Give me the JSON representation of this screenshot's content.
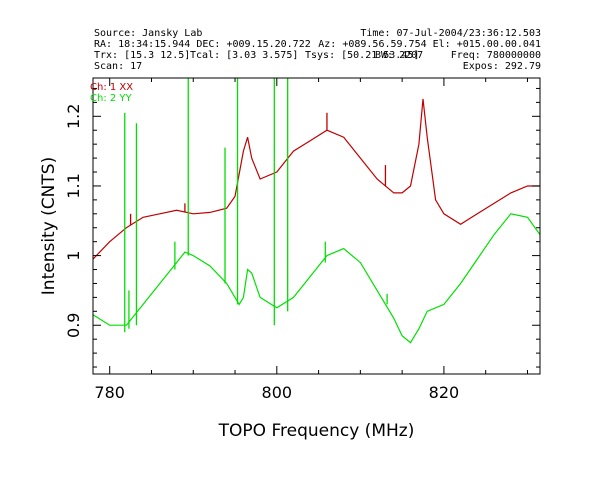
{
  "header": {
    "source": "Source: Jansky Lab",
    "time": "Time: 07-Jul-2004/23:36:12.503",
    "ra_dec": "RA: 18:34:15.944 DEC: +009.15.20.722",
    "az_el": "Az: +089.56.59.754 El: +015.00.00.041",
    "trx": "Trx: [15.3 12.5]",
    "tcal": "Tcal: [3.03 3.575]",
    "tsys": "Tsys: [50.21 53.45]",
    "bw": "BW: 2207",
    "freq": "Freq: 780000000",
    "scan": "Scan: 17",
    "expos": "Expos: 292.79"
  },
  "colors": {
    "ch1": "#c00000",
    "ch2": "#00e000",
    "axis": "#000000",
    "background": "#ffffff"
  },
  "chart_data": {
    "type": "line",
    "xlabel": "TOPO Frequency (MHz)",
    "ylabel": "Intensity (CNTS)",
    "xlim": [
      778,
      831.5
    ],
    "ylim": [
      0.83,
      1.255
    ],
    "xticks": [
      780,
      800,
      820
    ],
    "xtick_labels": [
      "780",
      "800",
      "820"
    ],
    "yticks": [
      0.9,
      1.0,
      1.1,
      1.2
    ],
    "ytick_labels": [
      "0.9",
      "1",
      "1.1",
      "1.2"
    ],
    "legend": [
      "Ch: 1 XX",
      "Ch: 2 YY"
    ],
    "legend_position": "top-left",
    "series": [
      {
        "name": "Ch: 1 XX",
        "color": "#c00000",
        "x": [
          778,
          780,
          782,
          784,
          786,
          788,
          790,
          792,
          794,
          795,
          796,
          796.5,
          797,
          798,
          800,
          802,
          804,
          806,
          808,
          810,
          812,
          814,
          815,
          816,
          817,
          817.5,
          818,
          819,
          820,
          822,
          824,
          826,
          828,
          830,
          831.5
        ],
        "y": [
          0.995,
          1.02,
          1.04,
          1.055,
          1.06,
          1.065,
          1.06,
          1.062,
          1.068,
          1.085,
          1.15,
          1.17,
          1.14,
          1.11,
          1.12,
          1.15,
          1.165,
          1.18,
          1.17,
          1.14,
          1.11,
          1.09,
          1.09,
          1.1,
          1.16,
          1.225,
          1.17,
          1.08,
          1.06,
          1.045,
          1.06,
          1.075,
          1.09,
          1.1,
          1.1
        ],
        "spikes": [
          {
            "x": 782.5,
            "y": 1.06
          },
          {
            "x": 789,
            "y": 1.075
          },
          {
            "x": 806,
            "y": 1.205
          },
          {
            "x": 813,
            "y": 1.13
          }
        ]
      },
      {
        "name": "Ch: 2 YY",
        "color": "#00e000",
        "x": [
          778,
          780,
          782,
          784,
          786,
          788,
          789,
          790,
          792,
          794,
          795,
          795.5,
          796,
          796.5,
          797,
          798,
          800,
          802,
          804,
          806,
          808,
          810,
          812,
          814,
          815,
          816,
          817,
          818,
          820,
          822,
          824,
          826,
          828,
          830,
          831.5
        ],
        "y": [
          0.915,
          0.9,
          0.9,
          0.93,
          0.96,
          0.99,
          1.005,
          1.0,
          0.985,
          0.96,
          0.94,
          0.93,
          0.94,
          0.98,
          0.975,
          0.94,
          0.925,
          0.94,
          0.97,
          1.0,
          1.01,
          0.99,
          0.95,
          0.91,
          0.885,
          0.875,
          0.895,
          0.92,
          0.93,
          0.96,
          0.995,
          1.03,
          1.06,
          1.055,
          1.03
        ],
        "spikes": [
          {
            "x": 781.8,
            "y1": 0.89,
            "y2": 1.205
          },
          {
            "x": 782.3,
            "y1": 0.895,
            "y2": 0.95
          },
          {
            "x": 783.2,
            "y1": 0.9,
            "y2": 1.19
          },
          {
            "x": 787.8,
            "y1": 0.98,
            "y2": 1.02
          },
          {
            "x": 789.4,
            "y1": 1.0,
            "y2": 1.255
          },
          {
            "x": 793.8,
            "y1": 0.96,
            "y2": 1.155
          },
          {
            "x": 795.3,
            "y1": 0.93,
            "y2": 1.255
          },
          {
            "x": 799.7,
            "y1": 0.9,
            "y2": 1.255
          },
          {
            "x": 801.3,
            "y1": 0.92,
            "y2": 1.255
          },
          {
            "x": 805.8,
            "y1": 0.99,
            "y2": 1.02
          },
          {
            "x": 813.2,
            "y1": 0.93,
            "y2": 0.945
          }
        ]
      }
    ]
  }
}
